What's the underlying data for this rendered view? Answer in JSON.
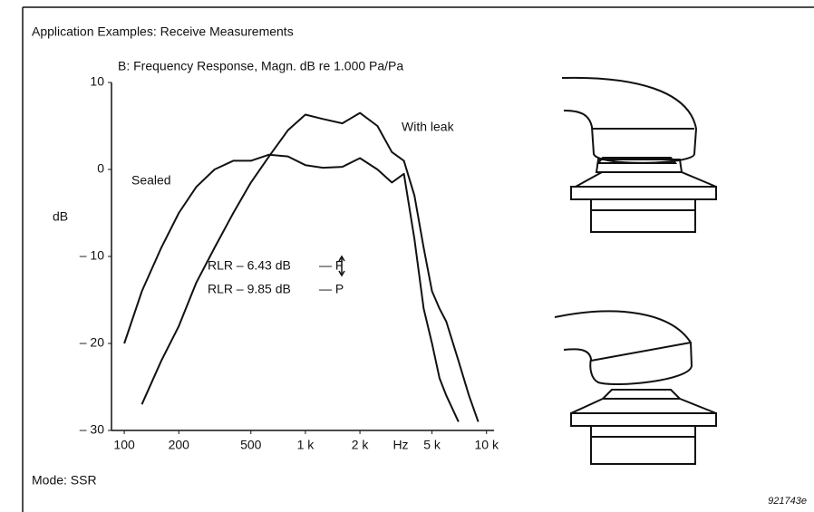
{
  "title": "Application Examples: Receive Measurements",
  "chart_data": {
    "type": "line",
    "title": "B: Frequency Response, Magn. dB re 1.000 Pa/Pa",
    "y_label": "dB",
    "x_unit": "Hz",
    "log_x": true,
    "x": [
      100,
      125,
      160,
      200,
      250,
      315,
      400,
      500,
      630,
      800,
      1000,
      1250,
      1600,
      2000,
      2500,
      3000,
      3500,
      4000,
      4500,
      5000,
      5500,
      6000,
      7000,
      8000,
      9000,
      10000
    ],
    "series": [
      {
        "name": "Sealed",
        "color": "#111111",
        "values": [
          -20,
          -14,
          -9,
          -5,
          -2,
          0,
          1,
          1,
          1.7,
          1.5,
          0.5,
          0.2,
          0.3,
          1.3,
          0,
          -1.5,
          -0.5,
          -8,
          -16,
          -20,
          -24,
          -26,
          -29,
          null,
          null,
          null
        ]
      },
      {
        "name": "With leak",
        "color": "#111111",
        "values": [
          null,
          -27,
          -22,
          -18,
          -13,
          -9,
          -5,
          -1.5,
          1.5,
          4.5,
          6.3,
          5.8,
          5.3,
          6.5,
          5,
          2,
          1,
          -3,
          -9,
          -14,
          -16,
          -17.5,
          -22,
          -26,
          -29,
          null
        ]
      }
    ],
    "xlim": [
      85,
      11000
    ],
    "ylim": [
      -30,
      10
    ],
    "xticks": [
      100,
      200,
      500,
      {
        "value": 1000,
        "label": "1 k"
      },
      {
        "value": 2000,
        "label": "2 k"
      },
      {
        "value": 5000,
        "label": "5 k"
      },
      {
        "value": 10000,
        "label": "10 k"
      }
    ],
    "yticks": [
      10,
      0,
      {
        "value": -10,
        "label": "– 10"
      },
      {
        "value": -20,
        "label": "– 20"
      },
      {
        "value": -30,
        "label": "– 30"
      }
    ],
    "annotations": [
      "RLR – 6.43 dB",
      "— F",
      "RLR – 9.85 dB",
      "— P"
    ]
  },
  "mode": "Mode: SSR",
  "figure_id": "921743e"
}
